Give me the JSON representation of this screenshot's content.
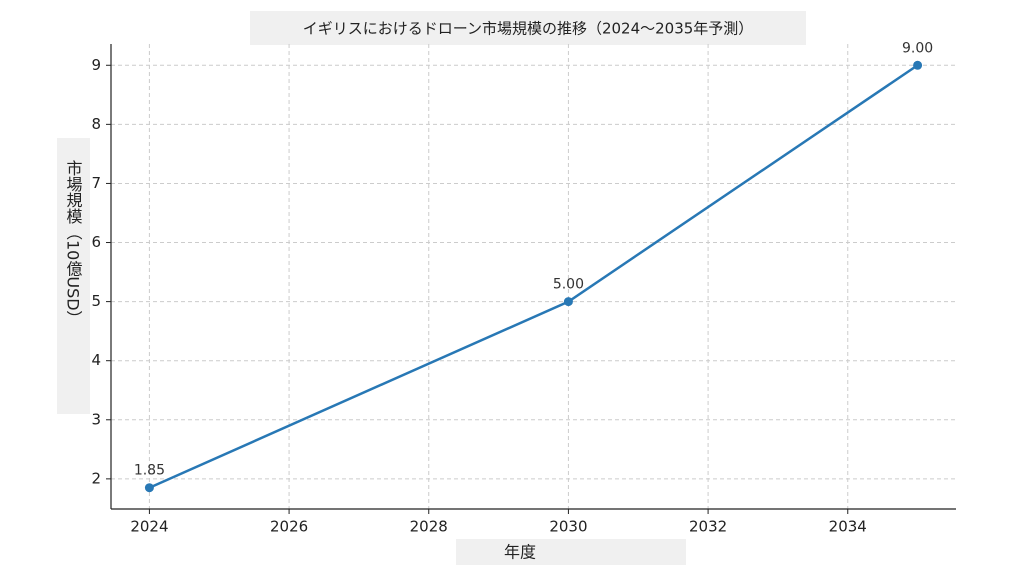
{
  "chart_data": {
    "type": "line",
    "title": "イギリスにおけるドローン市場規模の推移（2024〜2035年予測）",
    "xlabel": "年度",
    "ylabel": "市場規模（10億USD）",
    "x": [
      2024,
      2030,
      2035
    ],
    "series": [
      {
        "name": "市場規模",
        "color": "#2878b5",
        "values": [
          1.85,
          5.0,
          9.0
        ],
        "value_labels": [
          "1.85",
          "5.00",
          "9.00"
        ]
      }
    ],
    "xlim": [
      2023.45,
      2035.55
    ],
    "xticks": [
      2024,
      2026,
      2028,
      2030,
      2032,
      2034
    ],
    "ylim": [
      1.49,
      9.36
    ],
    "yticks": [
      2,
      3,
      4,
      5,
      6,
      7,
      8,
      9
    ],
    "grid": true
  }
}
